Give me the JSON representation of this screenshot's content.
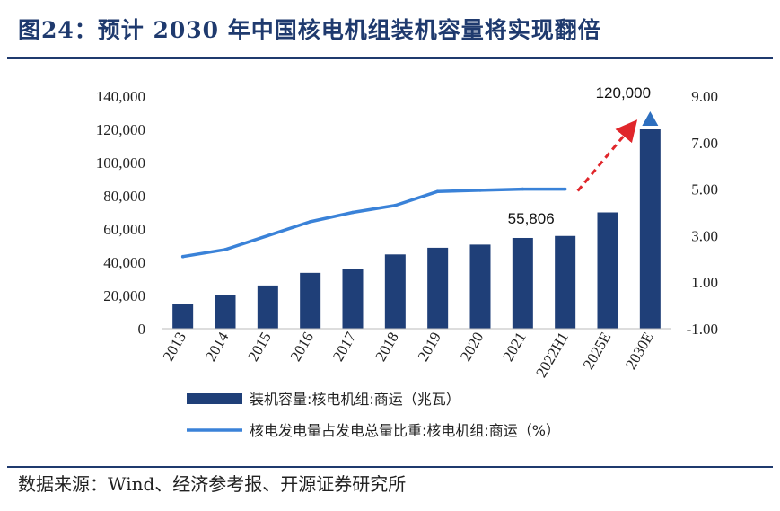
{
  "title": "图24：预计 2030 年中国核电机组装机容量将实现翻倍",
  "source": "数据来源：Wind、经济参考报、开源证券研究所",
  "colors": {
    "bar": "#1f3f78",
    "line": "#3a82d8",
    "arrow": "#e0262b",
    "triangle": "#2e6fbf",
    "title": "#1f3a6e"
  },
  "chart_data": {
    "type": "bar+line",
    "categories": [
      "2013",
      "2014",
      "2015",
      "2016",
      "2017",
      "2018",
      "2019",
      "2020",
      "2021",
      "2022H1",
      "2025E",
      "2030E"
    ],
    "series": [
      {
        "name": "装机容量:核电机组:商运（兆瓦）",
        "type": "bar",
        "axis": "left",
        "values": [
          14900,
          20000,
          26000,
          33600,
          35800,
          44700,
          48700,
          50600,
          54600,
          55806,
          70000,
          120000
        ]
      },
      {
        "name": "核电发电量占发电总量比重:核电机组:商运（%）",
        "type": "line",
        "axis": "right",
        "values": [
          2.1,
          2.4,
          3.0,
          3.6,
          4.0,
          4.3,
          4.9,
          4.95,
          5.0,
          5.0,
          null,
          null
        ]
      }
    ],
    "y_left": {
      "range": [
        0,
        140000
      ],
      "ticks": [
        "0",
        "20,000",
        "40,000",
        "60,000",
        "80,000",
        "100,000",
        "120,000",
        "140,000"
      ]
    },
    "y_right": {
      "range": [
        -1,
        9
      ],
      "ticks": [
        "-1.00",
        "1.00",
        "3.00",
        "5.00",
        "7.00",
        "9.00"
      ]
    },
    "annotations": [
      {
        "category": "2022H1",
        "text": "55,806"
      },
      {
        "category": "2030E",
        "text": "120,000"
      }
    ],
    "legend_position": "bottom"
  }
}
